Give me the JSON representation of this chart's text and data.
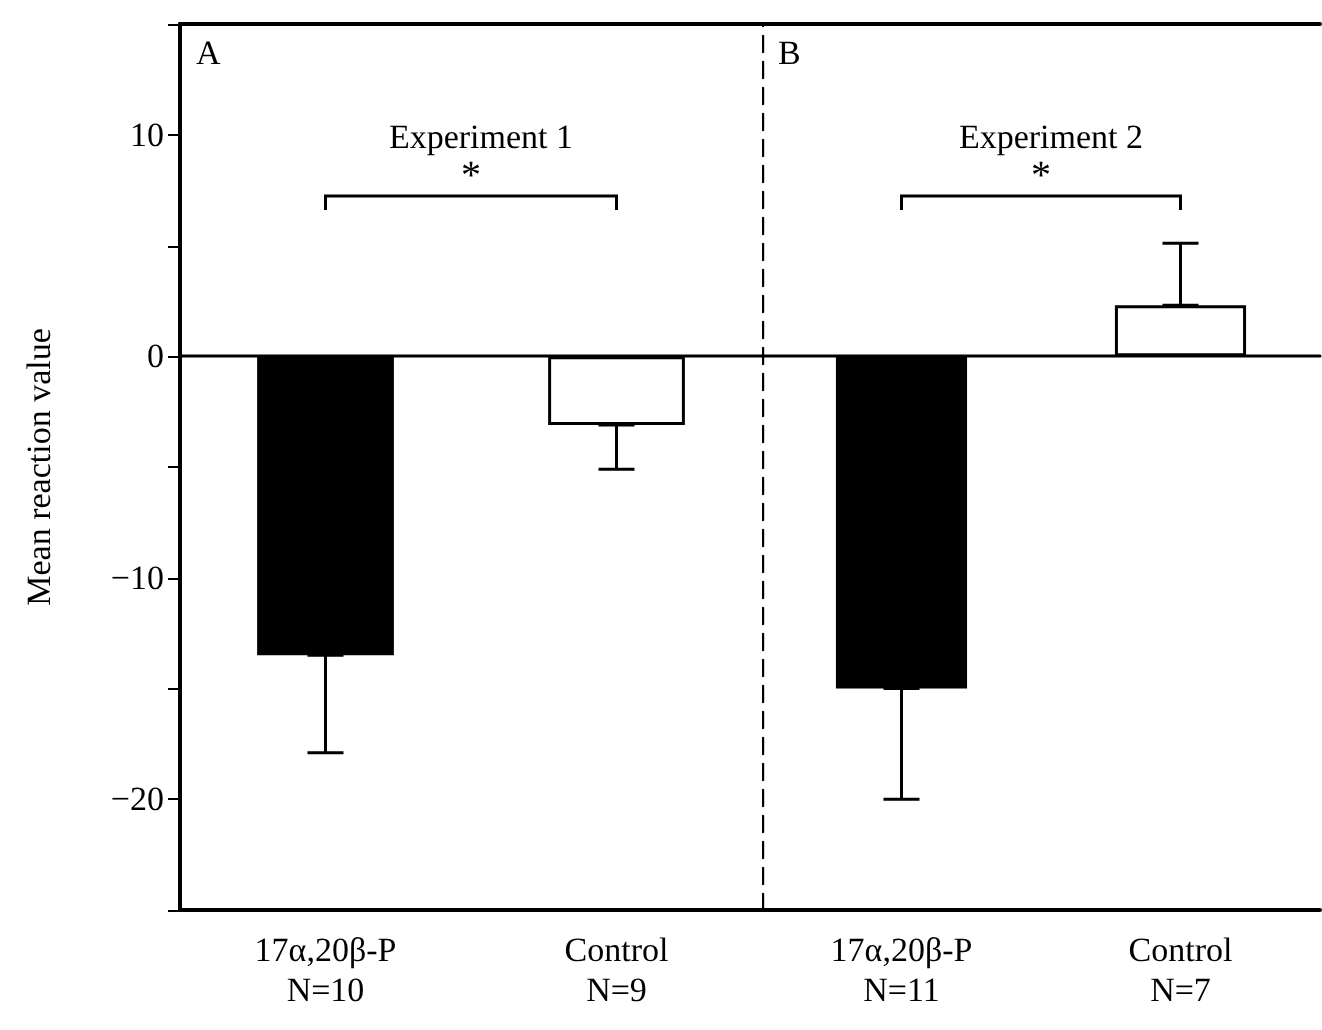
{
  "chart_data": [
    {
      "type": "bar",
      "title": "Experiment 1",
      "ylabel": "Mean reaction value",
      "annotations": [
        "A",
        "*"
      ],
      "categories": [
        "17α,20β-P\nN=10",
        "Control\nN=9"
      ],
      "values": [
        -13.5,
        -3.1
      ],
      "colors": [
        "#000000",
        "#ffffff"
      ],
      "errors": [
        [
          -17.9,
          -13.5
        ],
        [
          -5.1,
          -3.1
        ]
      ],
      "ylim": [
        -25,
        15
      ],
      "yticks": [
        {
          "value": -25,
          "label": null
        },
        -20,
        {
          "value": -15,
          "label": null
        },
        -10,
        {
          "value": -5,
          "label": null
        },
        0,
        {
          "value": 5,
          "label": null
        },
        10,
        {
          "value": 15,
          "label": null
        }
      ]
    },
    {
      "type": "bar",
      "title": "Experiment 2",
      "annotations": [
        "B",
        "*"
      ],
      "categories": [
        "17α,20β-P\nN=11",
        "Control\nN=7"
      ],
      "values": [
        -15.0,
        2.3
      ],
      "colors": [
        "#000000",
        "#ffffff"
      ],
      "errors": [
        [
          -20.0,
          -15.0
        ],
        [
          2.3,
          5.1
        ]
      ],
      "ylim": [
        -25,
        15
      ],
      "tick_labels": "x"
    }
  ]
}
